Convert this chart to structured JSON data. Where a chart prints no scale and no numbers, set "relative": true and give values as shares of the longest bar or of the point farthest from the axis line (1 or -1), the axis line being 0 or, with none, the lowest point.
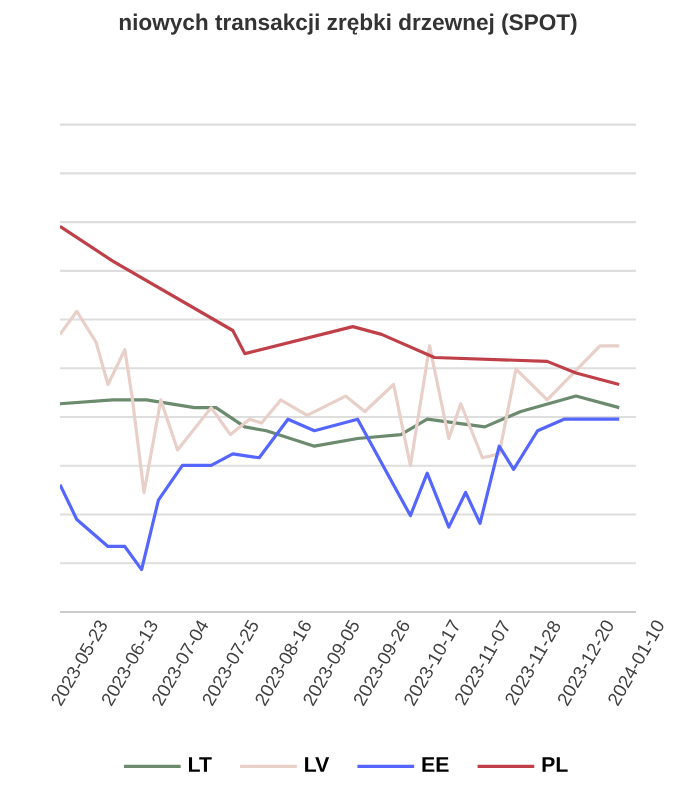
{
  "chart_data": {
    "type": "line",
    "title": "niowych transakcji zrębki drzewnej (SPOT)",
    "relative": true,
    "grid": "y",
    "legend": "bottom",
    "marker": "none",
    "line_style": "solid",
    "xlim": [
      "2023-05-15",
      "2024-01-10"
    ],
    "xticks": [
      "2023-05-23",
      "2023-06-13",
      "2023-07-04",
      "2023-07-25",
      "2023-08-16",
      "2023-09-05",
      "2023-09-26",
      "2023-10-17",
      "2023-11-07",
      "2023-11-28",
      "2023-12-20",
      "2024-01-10"
    ],
    "series": [
      {
        "name": "LT",
        "color": "#6b8a6e",
        "x": [
          "2023-05-15",
          "2023-06-06",
          "2023-06-20",
          "2023-07-10",
          "2023-07-19",
          "2023-07-31",
          "2023-08-09",
          "2023-08-29",
          "2023-09-16",
          "2023-10-04",
          "2023-10-15",
          "2023-11-08",
          "2023-11-23",
          "2023-12-16",
          "2024-01-03"
        ],
        "values": [
          0.54,
          0.55,
          0.55,
          0.53,
          0.53,
          0.48,
          0.47,
          0.43,
          0.45,
          0.46,
          0.5,
          0.48,
          0.52,
          0.56,
          0.53
        ]
      },
      {
        "name": "LV",
        "color": "#e8cfc8",
        "x": [
          "2023-05-15",
          "2023-05-22",
          "2023-05-30",
          "2023-06-04",
          "2023-06-11",
          "2023-06-14",
          "2023-06-19",
          "2023-06-26",
          "2023-07-03",
          "2023-07-17",
          "2023-07-25",
          "2023-08-02",
          "2023-08-07",
          "2023-08-15",
          "2023-08-26",
          "2023-09-11",
          "2023-09-19",
          "2023-10-01",
          "2023-10-08",
          "2023-10-16",
          "2023-10-24",
          "2023-10-29",
          "2023-11-07",
          "2023-11-14",
          "2023-11-21",
          "2023-12-04",
          "2023-12-26",
          "2024-01-03"
        ],
        "values": [
          0.72,
          0.78,
          0.7,
          0.59,
          0.68,
          0.56,
          0.31,
          0.55,
          0.42,
          0.53,
          0.46,
          0.5,
          0.49,
          0.55,
          0.51,
          0.56,
          0.52,
          0.59,
          0.38,
          0.69,
          0.45,
          0.54,
          0.4,
          0.41,
          0.63,
          0.55,
          0.69,
          0.69
        ]
      },
      {
        "name": "EE",
        "color": "#5566ff",
        "x": [
          "2023-05-15",
          "2023-05-22",
          "2023-06-04",
          "2023-06-11",
          "2023-06-18",
          "2023-06-25",
          "2023-07-05",
          "2023-07-17",
          "2023-07-26",
          "2023-08-06",
          "2023-08-18",
          "2023-08-29",
          "2023-09-16",
          "2023-10-08",
          "2023-10-15",
          "2023-10-24",
          "2023-10-31",
          "2023-11-06",
          "2023-11-14",
          "2023-11-20",
          "2023-11-30",
          "2023-12-11",
          "2024-01-03"
        ],
        "values": [
          0.33,
          0.24,
          0.17,
          0.17,
          0.11,
          0.29,
          0.38,
          0.38,
          0.41,
          0.4,
          0.5,
          0.47,
          0.5,
          0.25,
          0.36,
          0.22,
          0.31,
          0.23,
          0.43,
          0.37,
          0.47,
          0.5,
          0.5
        ]
      },
      {
        "name": "PL",
        "color": "#c0404a",
        "x": [
          "2023-05-15",
          "2023-06-06",
          "2023-07-26",
          "2023-07-31",
          "2023-09-14",
          "2023-09-26",
          "2023-10-18",
          "2023-12-04",
          "2023-12-16",
          "2024-01-03"
        ],
        "values": [
          1.0,
          0.91,
          0.73,
          0.67,
          0.74,
          0.72,
          0.66,
          0.65,
          0.62,
          0.59
        ]
      }
    ]
  }
}
